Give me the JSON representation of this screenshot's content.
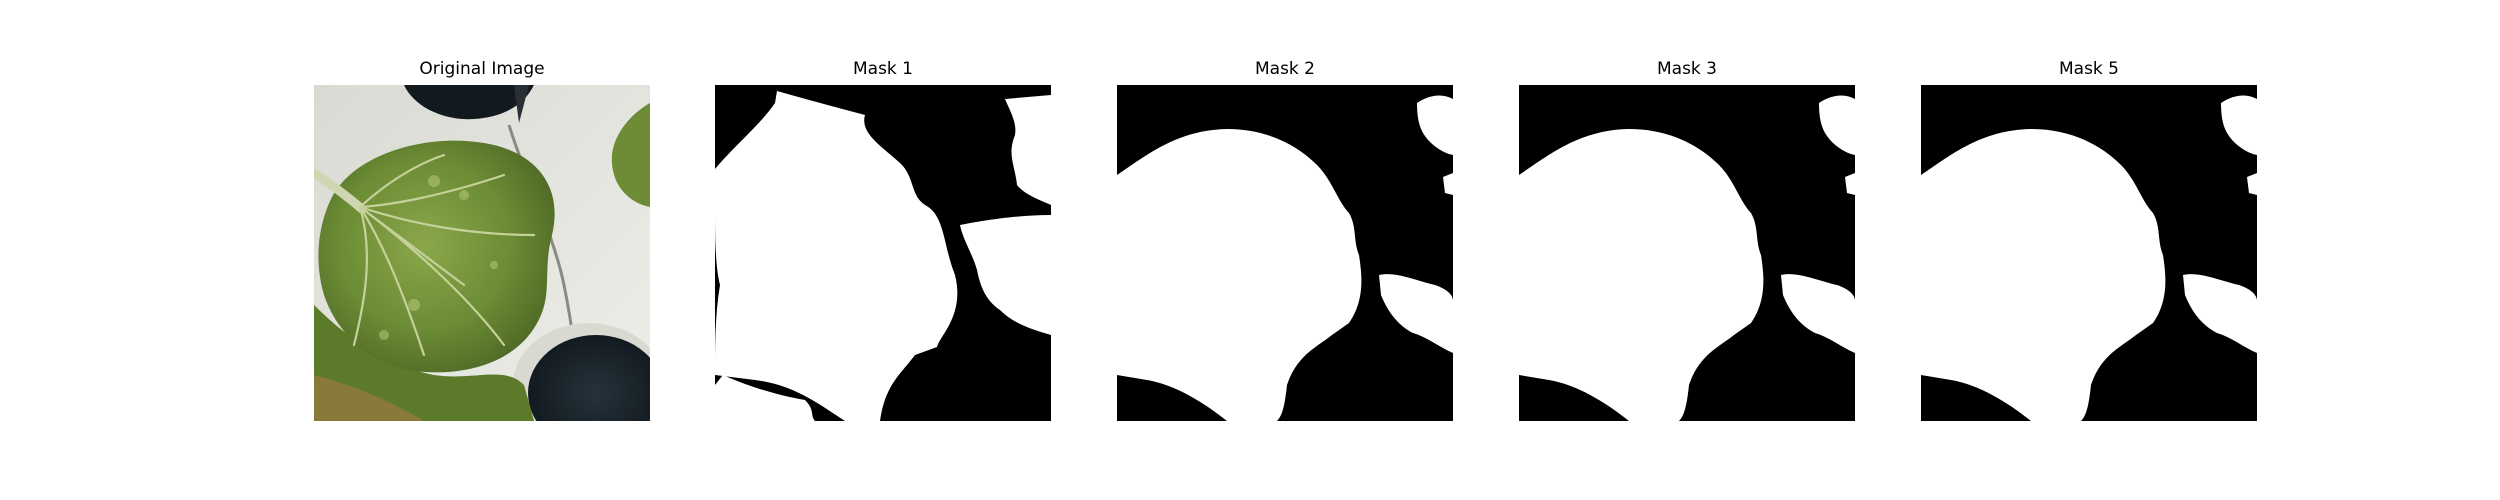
{
  "panels": [
    {
      "title": "Original Image",
      "image": "original-photo"
    },
    {
      "title": "Mask 1",
      "image": "segmentation-mask"
    },
    {
      "title": "Mask 2",
      "image": "segmentation-mask"
    },
    {
      "title": "Mask 3",
      "image": "segmentation-mask"
    },
    {
      "title": "Mask 5",
      "image": "segmentation-mask"
    }
  ],
  "colors": {
    "background": "#ffffff",
    "mask_foreground": "#ffffff",
    "mask_background": "#000000",
    "leaf_green": "#6e8f3a",
    "tray_white": "#e4e4df"
  }
}
